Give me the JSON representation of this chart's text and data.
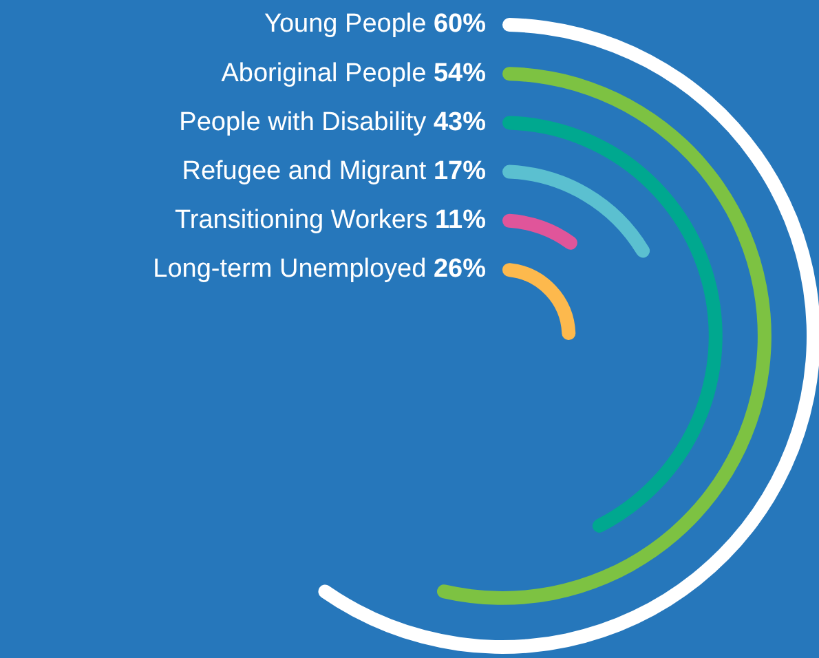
{
  "chart_data": {
    "type": "other",
    "categories": [
      "Young People",
      "Aboriginal People",
      "People with Disability",
      "Refugee and Migrant",
      "Transitioning Workers",
      "Long-term Unemployed"
    ],
    "values": [
      60,
      54,
      43,
      17,
      11,
      26
    ],
    "colors": [
      "#ffffff",
      "#7dc242",
      "#00a88f",
      "#5bc0d0",
      "#e0559a",
      "#fdb94d"
    ],
    "value_labels": [
      "60%",
      "54%",
      "43%",
      "17%",
      "11%",
      "26%"
    ]
  }
}
